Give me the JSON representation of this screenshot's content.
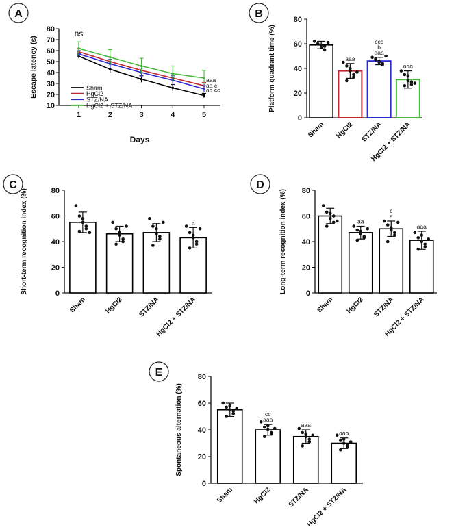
{
  "chart_data": [
    {
      "panel": "A",
      "type": "line",
      "xlabel": "Days",
      "ylabel": "Escape latency (s)",
      "x": [
        1,
        2,
        3,
        4,
        5
      ],
      "ylim": [
        10,
        80
      ],
      "yticks": [
        10,
        20,
        30,
        40,
        50,
        60,
        70,
        80
      ],
      "series": [
        {
          "name": "Sham",
          "color": "#000000",
          "values": [
            55,
            43,
            34,
            26,
            19
          ],
          "err": [
            2,
            3,
            3,
            3,
            2
          ]
        },
        {
          "name": "HgCl2",
          "color": "#c0272d",
          "values": [
            59,
            50,
            42,
            35,
            28
          ],
          "err": [
            3,
            4,
            4,
            4,
            3
          ]
        },
        {
          "name": "STZ/NA",
          "color": "#2b2bd6",
          "values": [
            57,
            48,
            40,
            33,
            25
          ],
          "err": [
            3,
            4,
            4,
            4,
            3
          ]
        },
        {
          "name": "HgCl2 + STZ/NA",
          "color": "#48b83a",
          "values": [
            62,
            54,
            46,
            39,
            35
          ],
          "err": [
            6,
            7,
            7,
            7,
            7
          ]
        }
      ],
      "annotations": [
        {
          "x": 1,
          "y": 73,
          "text": "ns"
        },
        {
          "x": 5,
          "y": 33,
          "text": "aaa"
        },
        {
          "x": 5,
          "y": 28,
          "text": "aa c"
        },
        {
          "x": 5,
          "y": 24,
          "text": "aa cc"
        }
      ]
    },
    {
      "panel": "B",
      "type": "bar",
      "ylabel": "Platform quadrant time (%)",
      "categories": [
        "Sham",
        "HgCl2",
        "STZ/NA",
        "HgCl2 + STZ/NA"
      ],
      "colors": [
        "#000000",
        "#c0272d",
        "#2b2bd6",
        "#48b83a"
      ],
      "values": [
        59,
        38,
        46,
        31
      ],
      "err": [
        3,
        6,
        3,
        7
      ],
      "ylim": [
        0,
        80
      ],
      "yticks": [
        0,
        20,
        40,
        60,
        80
      ],
      "points": [
        [
          62,
          60,
          59,
          58,
          60,
          57,
          55,
          61
        ],
        [
          45,
          42,
          38,
          35,
          30,
          40,
          33,
          37
        ],
        [
          49,
          47,
          45,
          44,
          48,
          46,
          43,
          50
        ],
        [
          38,
          35,
          30,
          27,
          26,
          34,
          29,
          28
        ]
      ],
      "annotations": [
        [],
        [
          "aaa"
        ],
        [
          "ccc",
          "b",
          "aaa"
        ],
        [
          "aaa"
        ]
      ]
    },
    {
      "panel": "C",
      "type": "bar",
      "ylabel": "Short-term recognition index (%)",
      "categories": [
        "Sham",
        "HgCl2",
        "STZ/NA",
        "HgCl2 + STZ/NA"
      ],
      "colors": [
        "#000000",
        "#000000",
        "#000000",
        "#000000"
      ],
      "values": [
        55,
        46,
        47,
        43
      ],
      "err": [
        8,
        6,
        7,
        8
      ],
      "ylim": [
        0,
        80
      ],
      "yticks": [
        0,
        20,
        40,
        60,
        80
      ],
      "points": [
        [
          68,
          60,
          55,
          50,
          48,
          58,
          52,
          47
        ],
        [
          55,
          50,
          45,
          42,
          38,
          47,
          40,
          52
        ],
        [
          58,
          52,
          46,
          42,
          37,
          50,
          44,
          55
        ],
        [
          52,
          47,
          43,
          38,
          35,
          45,
          40,
          50
        ]
      ],
      "annotations": [
        [],
        [],
        [],
        [
          "a"
        ]
      ]
    },
    {
      "panel": "D",
      "type": "bar",
      "ylabel": "Long-term recognition index (%)",
      "categories": [
        "Sham",
        "HgCl2",
        "STZ/NA",
        "HgCl2 + STZ/NA"
      ],
      "colors": [
        "#000000",
        "#000000",
        "#000000",
        "#000000"
      ],
      "values": [
        60,
        47,
        50,
        41
      ],
      "err": [
        6,
        5,
        6,
        7
      ],
      "ylim": [
        0,
        80
      ],
      "yticks": [
        0,
        20,
        40,
        60,
        80
      ],
      "points": [
        [
          68,
          63,
          58,
          55,
          52,
          62,
          60,
          56
        ],
        [
          52,
          49,
          46,
          44,
          41,
          48,
          43,
          50
        ],
        [
          56,
          53,
          49,
          45,
          40,
          51,
          47,
          55
        ],
        [
          47,
          43,
          40,
          36,
          34,
          45,
          38,
          42
        ]
      ],
      "annotations": [
        [],
        [
          "aa"
        ],
        [
          "c",
          "a"
        ],
        [
          "aaa"
        ]
      ]
    },
    {
      "panel": "E",
      "type": "bar",
      "ylabel": "Spontaneous alternation (%)",
      "categories": [
        "Sham",
        "HgCl2",
        "STZ/NA",
        "HgCl2 + STZ/NA"
      ],
      "colors": [
        "#000000",
        "#000000",
        "#000000",
        "#000000"
      ],
      "values": [
        55,
        40,
        35,
        30
      ],
      "err": [
        5,
        4,
        5,
        4
      ],
      "ylim": [
        0,
        80
      ],
      "yticks": [
        0,
        20,
        40,
        60,
        80
      ],
      "points": [
        [
          60,
          57,
          55,
          52,
          50,
          58,
          54,
          56
        ],
        [
          46,
          42,
          40,
          37,
          35,
          43,
          38,
          41
        ],
        [
          41,
          38,
          35,
          31,
          28,
          37,
          33,
          36
        ],
        [
          36,
          32,
          30,
          27,
          25,
          33,
          29,
          31
        ]
      ],
      "annotations": [
        [],
        [
          "cc",
          "aaa"
        ],
        [
          "aaa"
        ],
        [
          "aaa"
        ]
      ]
    }
  ]
}
